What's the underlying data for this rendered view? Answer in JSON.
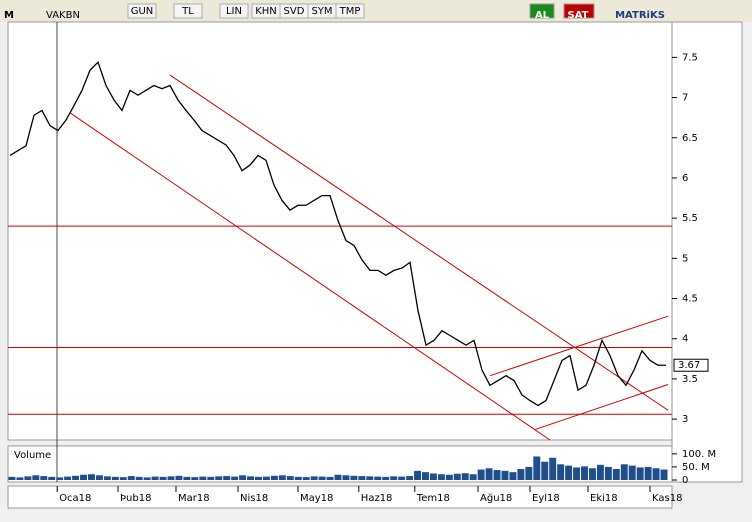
{
  "toolbar": {
    "symbol": "VAKBN",
    "buttons": [
      "GUN",
      "TL",
      "LIN",
      "KHN",
      "SVD",
      "SYM",
      "TMP"
    ],
    "buy": "AL",
    "sell": "SAT",
    "brand": "MATRiKS"
  },
  "chart_data": {
    "type": "line",
    "name": "VAKBN",
    "values": [
      6.28,
      6.34,
      6.4,
      6.78,
      6.84,
      6.65,
      6.59,
      6.72,
      6.9,
      7.09,
      7.34,
      7.44,
      7.15,
      6.97,
      6.84,
      7.09,
      7.03,
      7.09,
      7.15,
      7.11,
      7.15,
      6.97,
      6.84,
      6.72,
      6.59,
      6.53,
      6.47,
      6.41,
      6.28,
      6.09,
      6.16,
      6.28,
      6.22,
      5.91,
      5.72,
      5.6,
      5.66,
      5.66,
      5.72,
      5.78,
      5.78,
      5.47,
      5.22,
      5.16,
      4.98,
      4.85,
      4.85,
      4.79,
      4.85,
      4.88,
      4.95,
      4.35,
      3.92,
      3.98,
      4.1,
      4.04,
      3.98,
      3.92,
      3.98,
      3.61,
      3.42,
      3.48,
      3.54,
      3.48,
      3.3,
      3.23,
      3.17,
      3.23,
      3.48,
      3.73,
      3.79,
      3.36,
      3.42,
      3.67,
      3.98,
      3.79,
      3.54,
      3.42,
      3.61,
      3.85,
      3.73,
      3.67,
      3.67
    ],
    "color": "#000000",
    "ylim": [
      2.74,
      7.94
    ],
    "yticks": [
      3,
      3.5,
      4,
      4.5,
      5,
      5.5,
      6,
      6.5,
      7,
      7.5
    ],
    "last_price": 3.67,
    "xlim": [
      -0.25,
      82.25
    ],
    "xticks": [
      {
        "value": 5.9,
        "label": "Oca18"
      },
      {
        "value": 13.5,
        "label": "Þub18"
      },
      {
        "value": 20.75,
        "label": "Mar18"
      },
      {
        "value": 28.5,
        "label": "Nis18"
      },
      {
        "value": 36,
        "label": "May18"
      },
      {
        "value": 43.6,
        "label": "Haz18"
      },
      {
        "value": 50.6,
        "label": "Tem18"
      },
      {
        "value": 58.5,
        "label": "Ağu18"
      },
      {
        "value": 65,
        "label": "Eyl18"
      },
      {
        "value": 72.25,
        "label": "Eki18"
      },
      {
        "value": 80,
        "label": "Kas18"
      }
    ],
    "levels": [
      5.4,
      3.89,
      3.06
    ],
    "trend_lines": [
      [
        [
          20,
          7.28
        ],
        [
          82.25,
          3.11
        ]
      ],
      [
        [
          7.5,
          6.81
        ],
        [
          67.5,
          2.74
        ]
      ],
      [
        [
          60,
          3.54
        ],
        [
          82.25,
          4.28
        ]
      ],
      [
        [
          65.6,
          2.87
        ],
        [
          82.25,
          3.43
        ]
      ]
    ],
    "line_color": "#cc0000",
    "volume": {
      "title": "Volume",
      "values": [
        12,
        10,
        14,
        18,
        15,
        12,
        10,
        13,
        16,
        20,
        22,
        18,
        14,
        12,
        11,
        15,
        12,
        10,
        13,
        12,
        14,
        16,
        12,
        11,
        13,
        12,
        14,
        15,
        13,
        18,
        14,
        12,
        13,
        16,
        18,
        15,
        12,
        11,
        14,
        13,
        12,
        20,
        18,
        16,
        15,
        14,
        13,
        12,
        14,
        13,
        15,
        35,
        30,
        25,
        22,
        20,
        24,
        26,
        22,
        40,
        45,
        38,
        35,
        30,
        42,
        50,
        90,
        70,
        85,
        60,
        55,
        48,
        52,
        45,
        58,
        50,
        42,
        60,
        55,
        48,
        50,
        45,
        40
      ],
      "ylim": [
        0,
        130
      ],
      "yticks": [
        {
          "value": 0,
          "label": "0"
        },
        {
          "value": 50,
          "label": "50. M"
        },
        {
          "value": 100,
          "label": "100. M"
        }
      ],
      "color": "#1f4e8c"
    }
  }
}
